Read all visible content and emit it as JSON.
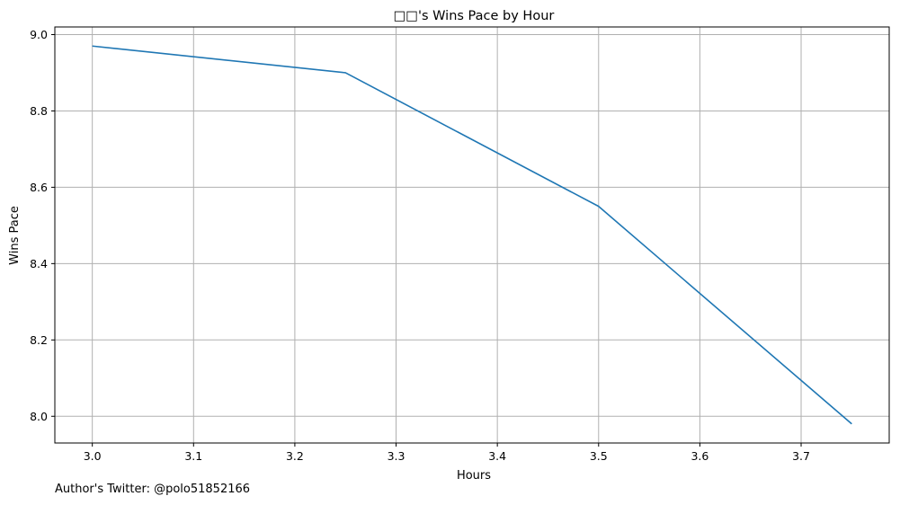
{
  "chart_data": {
    "type": "line",
    "title": "□□'s Wins Pace by Hour",
    "xlabel": "Hours",
    "ylabel": "Wins Pace",
    "x": [
      3.0,
      3.25,
      3.5,
      3.75
    ],
    "series": [
      {
        "values": [
          8.97,
          8.9,
          8.55,
          7.98
        ],
        "color": "#1f77b4"
      }
    ],
    "xlim": [
      2.963,
      3.787
    ],
    "ylim": [
      7.93,
      9.02
    ],
    "xticks": [
      3.0,
      3.1,
      3.2,
      3.3,
      3.4,
      3.5,
      3.6,
      3.7
    ],
    "xtick_labels": [
      "3.0",
      "3.1",
      "3.2",
      "3.3",
      "3.4",
      "3.5",
      "3.6",
      "3.7"
    ],
    "yticks": [
      8.0,
      8.2,
      8.4,
      8.6,
      8.8,
      9.0
    ],
    "ytick_labels": [
      "8.0",
      "8.2",
      "8.4",
      "8.6",
      "8.8",
      "9.0"
    ],
    "grid": true,
    "grid_color": "#b0b0b0"
  },
  "footer": {
    "text": "Author's Twitter: @polo51852166"
  }
}
